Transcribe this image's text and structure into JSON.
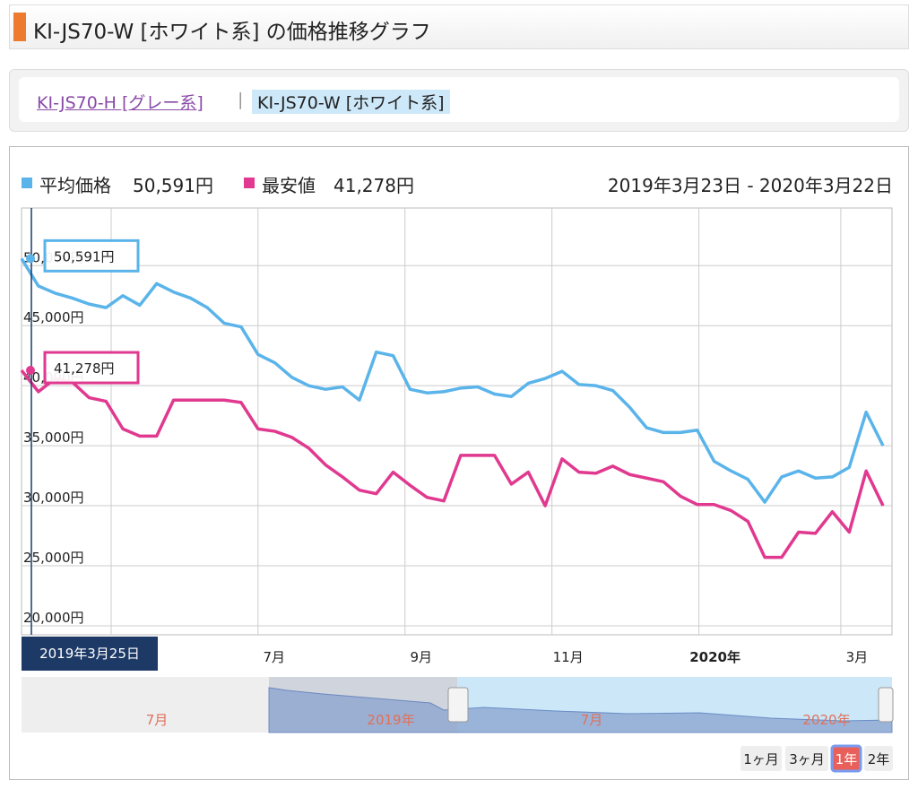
{
  "header": {
    "title": "KI-JS70-W [ホワイト系] の価格推移グラフ"
  },
  "tabs": [
    {
      "label": "KI-JS70-H [グレー系]"
    },
    {
      "label": "KI-JS70-W [ホワイト系]"
    }
  ],
  "chart_data": {
    "type": "line",
    "date_range": "2019年3月23日 - 2020年3月22日",
    "cursor_date": "2019年3月25日",
    "series": [
      {
        "name": "平均価格",
        "color": "#5ab4ea",
        "values": [
          50591,
          48300,
          47700,
          47300,
          46800,
          46500,
          47500,
          46700,
          48500,
          47800,
          47300,
          46500,
          45200,
          44900,
          42600,
          41900,
          40700,
          40000,
          39700,
          39900,
          38800,
          42800,
          42500,
          39700,
          39400,
          39500,
          39800,
          39900,
          39300,
          39100,
          40200,
          40600,
          41200,
          40100,
          40000,
          39600,
          38200,
          36500,
          36100,
          36100,
          36300,
          33700,
          32900,
          32200,
          30300,
          32400,
          32900,
          32300,
          32400,
          33200,
          37800,
          35000
        ],
        "value_labels": [
          "50,591円",
          null,
          null,
          null,
          null,
          null,
          null,
          null,
          null,
          null,
          null,
          null,
          null,
          null,
          null,
          null,
          null,
          null,
          null,
          null,
          null,
          null,
          null,
          null,
          null,
          null,
          null,
          null,
          null,
          null,
          null,
          null,
          null,
          null,
          null,
          null,
          null,
          null,
          null,
          null,
          null,
          null,
          null,
          null,
          null,
          null,
          null,
          null,
          null,
          null,
          null,
          null
        ]
      },
      {
        "name": "最安値",
        "color": "#e0398f",
        "values": [
          41278,
          39500,
          40600,
          40300,
          39000,
          38700,
          36400,
          35800,
          35800,
          38800,
          38800,
          38800,
          38800,
          38600,
          36400,
          36200,
          35700,
          34800,
          33400,
          32400,
          31300,
          31000,
          32800,
          31700,
          30700,
          30400,
          34200,
          34200,
          34200,
          31800,
          32800,
          30000,
          33900,
          32800,
          32700,
          33300,
          32600,
          32300,
          32000,
          30800,
          30100,
          30100,
          29600,
          28700,
          25700,
          25700,
          27800,
          27700,
          29500,
          27800,
          32900,
          30000
        ],
        "value_labels": [
          "41,278円",
          null,
          null,
          null,
          null,
          null,
          null,
          null,
          null,
          null,
          null,
          null,
          null,
          null,
          null,
          null,
          null,
          null,
          null,
          null,
          null,
          null,
          null,
          null,
          null,
          null,
          null,
          null,
          null,
          null,
          null,
          null,
          null,
          null,
          null,
          null,
          null,
          null,
          null,
          null,
          null,
          null,
          null,
          null,
          null,
          null,
          null,
          null,
          null,
          null,
          null,
          null
        ]
      }
    ],
    "xlim": [
      0,
      51
    ],
    "xticks": [
      {
        "value": 14.0,
        "label": "7月"
      },
      {
        "value": 22.7,
        "label": "9月"
      },
      {
        "value": 31.4,
        "label": "11月"
      },
      {
        "value": 40.1,
        "label": "2020年"
      },
      {
        "value": 48.5,
        "label": "3月"
      }
    ],
    "ylim": [
      19250,
      54800
    ],
    "yticks": [
      {
        "value": 20000,
        "label": "20,000円"
      },
      {
        "value": 25000,
        "label": "25,000円"
      },
      {
        "value": 30000,
        "label": "30,000円"
      },
      {
        "value": 35000,
        "label": "35,000円"
      },
      {
        "value": 40000,
        "label": "40,000円"
      },
      {
        "value": 45000,
        "label": "45,000円"
      },
      {
        "value": 50000,
        "label": "50,000円"
      }
    ],
    "grid": true,
    "navigator_labels": [
      "7月",
      "2019年",
      "7月",
      "2020年"
    ],
    "range_buttons": [
      "1ヶ月",
      "3ヶ月",
      "1年",
      "2年"
    ],
    "selected_button": 2
  }
}
